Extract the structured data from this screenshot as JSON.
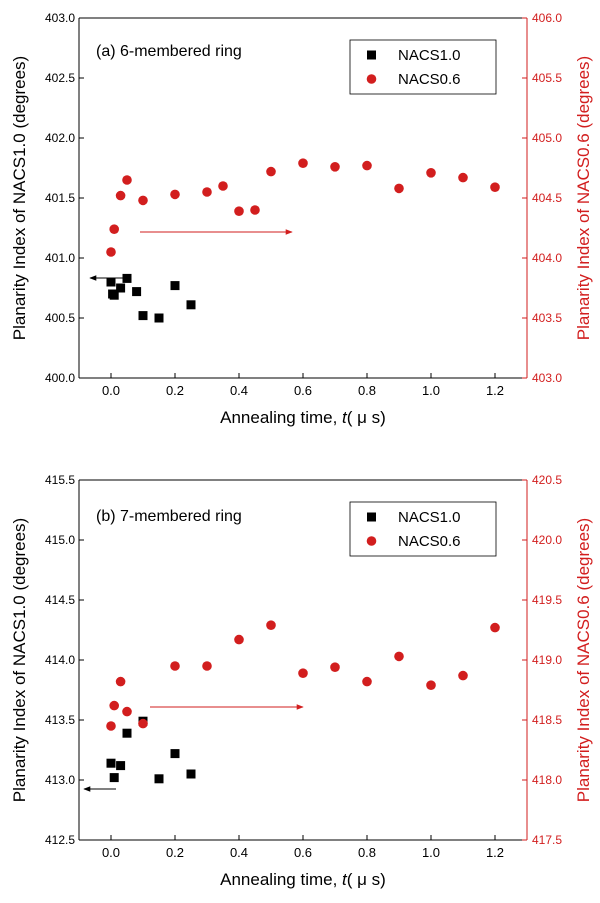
{
  "chart_data": [
    {
      "type": "scatter",
      "title": "(a) 6-membered ring",
      "xlabel_prefix": "Annealing time, ",
      "xlabel_var": "t",
      "xlabel_unit": "( μ s)",
      "ylabel_left": "Planarity Index of NACS1.0 (degrees)",
      "ylabel_right": "Planarity Index of NACS0.6 (degrees)",
      "xlim": [
        -0.1,
        1.3
      ],
      "ylim_left": [
        400.0,
        403.0
      ],
      "ylim_right": [
        403.0,
        406.0
      ],
      "x_ticks": [
        "0.0",
        "0.2",
        "0.4",
        "0.6",
        "0.8",
        "1.0",
        "1.2"
      ],
      "y_ticks_left": [
        "400.0",
        "400.5",
        "401.0",
        "401.5",
        "402.0",
        "402.5",
        "403.0"
      ],
      "y_ticks_right": [
        "403.0",
        "403.5",
        "404.0",
        "404.5",
        "405.0",
        "405.5",
        "406.0"
      ],
      "series": [
        {
          "name": "NACS1.0",
          "axis": "left",
          "color": "#000000",
          "marker": "square",
          "x": [
            0.0,
            0.005,
            0.01,
            0.03,
            0.05,
            0.08,
            0.1,
            0.15,
            0.2,
            0.25
          ],
          "y": [
            400.8,
            400.7,
            400.69,
            400.75,
            400.83,
            400.72,
            400.52,
            400.5,
            400.77,
            400.61
          ]
        },
        {
          "name": "NACS0.6",
          "axis": "right",
          "color": "#d21e1e",
          "marker": "circle",
          "x": [
            0.0,
            0.01,
            0.03,
            0.05,
            0.1,
            0.2,
            0.3,
            0.35,
            0.4,
            0.45,
            0.5,
            0.6,
            0.7,
            0.8,
            0.9,
            1.0,
            1.1,
            1.2
          ],
          "y": [
            404.05,
            404.24,
            404.52,
            404.65,
            404.48,
            404.53,
            404.55,
            404.6,
            404.39,
            404.4,
            404.72,
            404.79,
            404.76,
            404.77,
            404.58,
            404.71,
            404.67,
            404.59
          ]
        }
      ],
      "legend_position": "top-right"
    },
    {
      "type": "scatter",
      "title": "(b) 7-membered ring",
      "xlabel_prefix": "Annealing time, ",
      "xlabel_var": "t",
      "xlabel_unit": "( μ s)",
      "ylabel_left": "Planarity Index of NACS1.0 (degrees)",
      "ylabel_right": "Planarity Index of NACS0.6 (degrees)",
      "xlim": [
        -0.1,
        1.3
      ],
      "ylim_left": [
        412.5,
        415.5
      ],
      "ylim_right": [
        417.5,
        420.5
      ],
      "x_ticks": [
        "0.0",
        "0.2",
        "0.4",
        "0.6",
        "0.8",
        "1.0",
        "1.2"
      ],
      "y_ticks_left": [
        "412.5",
        "413.0",
        "413.5",
        "414.0",
        "414.5",
        "415.0",
        "415.5"
      ],
      "y_ticks_right": [
        "417.5",
        "418.0",
        "418.5",
        "419.0",
        "419.5",
        "420.0",
        "420.5"
      ],
      "series": [
        {
          "name": "NACS1.0",
          "axis": "left",
          "color": "#000000",
          "marker": "square",
          "x": [
            0.0,
            0.01,
            0.03,
            0.05,
            0.1,
            0.15,
            0.2,
            0.25
          ],
          "y": [
            413.14,
            413.02,
            413.12,
            413.39,
            413.49,
            413.01,
            413.22,
            413.05
          ]
        },
        {
          "name": "NACS0.6",
          "axis": "right",
          "color": "#d21e1e",
          "marker": "circle",
          "x": [
            0.0,
            0.01,
            0.03,
            0.05,
            0.1,
            0.2,
            0.3,
            0.4,
            0.5,
            0.6,
            0.7,
            0.8,
            0.9,
            1.0,
            1.1,
            1.2
          ],
          "y": [
            418.45,
            418.62,
            418.82,
            418.57,
            418.47,
            418.95,
            418.95,
            419.17,
            419.29,
            418.89,
            418.94,
            418.82,
            419.03,
            418.79,
            418.87,
            419.27
          ]
        }
      ],
      "legend_position": "top-right"
    }
  ]
}
